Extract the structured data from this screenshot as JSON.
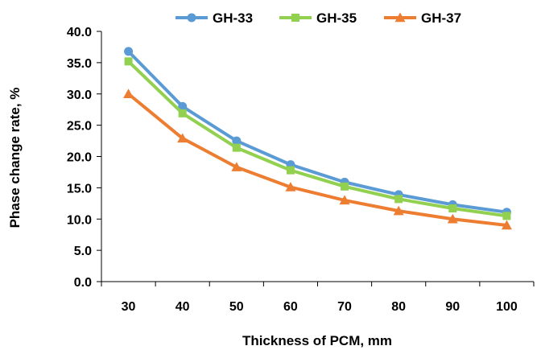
{
  "chart_data": {
    "type": "line",
    "title": "",
    "xlabel": "Thickness of PCM, mm",
    "ylabel": "Phase change rate, %",
    "x": [
      30,
      40,
      50,
      60,
      70,
      80,
      90,
      100
    ],
    "x_tick_labels": [
      "30",
      "40",
      "50",
      "60",
      "70",
      "80",
      "90",
      "100"
    ],
    "ylim": [
      0,
      40
    ],
    "y_ticks": [
      0,
      5,
      10,
      15,
      20,
      25,
      30,
      35,
      40
    ],
    "y_tick_labels": [
      "0.0",
      "5.0",
      "10.0",
      "15.0",
      "20.0",
      "25.0",
      "30.0",
      "35.0",
      "40.0"
    ],
    "grid": false,
    "legend_position": "top",
    "series": [
      {
        "name": "GH-33",
        "color": "#5b9bd5",
        "marker": "circle",
        "values": [
          36.8,
          28.0,
          22.5,
          18.7,
          15.9,
          13.9,
          12.3,
          11.1
        ]
      },
      {
        "name": "GH-35",
        "color": "#92d050",
        "marker": "square",
        "values": [
          35.2,
          26.9,
          21.4,
          17.8,
          15.2,
          13.2,
          11.7,
          10.5
        ]
      },
      {
        "name": "GH-37",
        "color": "#ed7d31",
        "marker": "triangle",
        "values": [
          30.0,
          22.9,
          18.3,
          15.1,
          13.0,
          11.3,
          10.0,
          9.0
        ]
      }
    ]
  }
}
